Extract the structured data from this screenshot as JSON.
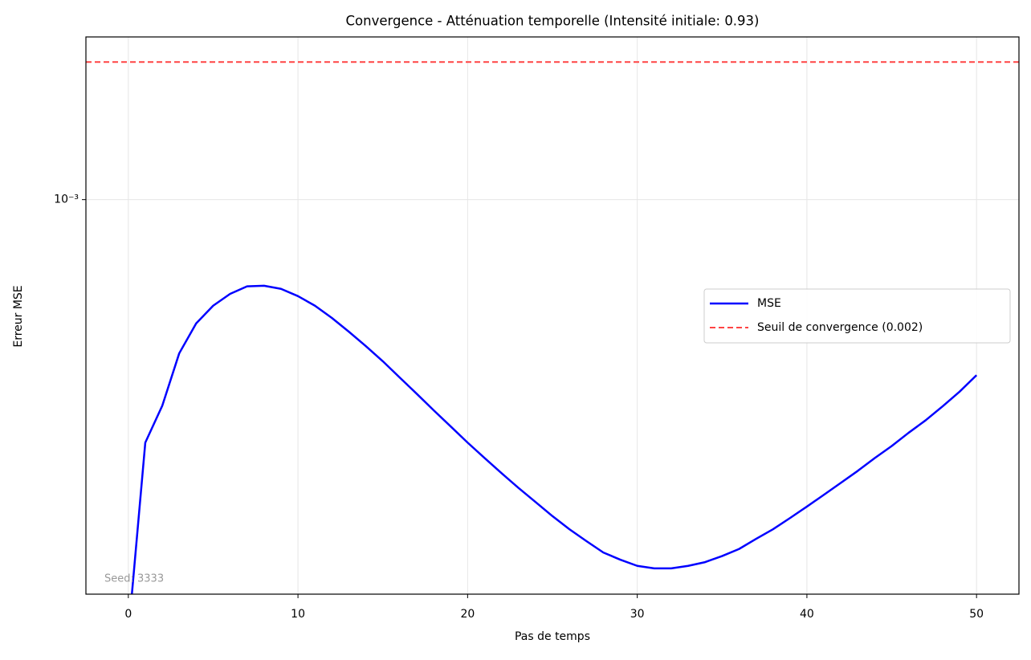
{
  "chart_data": {
    "type": "line",
    "title": "Convergence - Atténuation temporelle (Intensité initiale: 0.93)",
    "xlabel": "Pas de temps",
    "ylabel": "Erreur MSE",
    "x": [
      0,
      1,
      2,
      3,
      4,
      5,
      6,
      7,
      8,
      9,
      10,
      11,
      12,
      13,
      14,
      15,
      16,
      17,
      18,
      19,
      20,
      21,
      22,
      23,
      24,
      25,
      26,
      27,
      28,
      29,
      30,
      31,
      32,
      33,
      34,
      35,
      36,
      37,
      38,
      39,
      40,
      41,
      42,
      43,
      44,
      45,
      46,
      47,
      48,
      49,
      50
    ],
    "series": [
      {
        "name": "MSE",
        "color": "#0000ff",
        "values": [
          0,
          0.000294,
          0.000354,
          0.000461,
          0.000536,
          0.000586,
          0.000622,
          0.000646,
          0.000648,
          0.000638,
          0.000615,
          0.000586,
          0.000551,
          0.000514,
          0.000478,
          0.000443,
          0.000408,
          0.000376,
          0.000346,
          0.000319,
          0.000294,
          0.000272,
          0.000252,
          0.000234,
          0.000218,
          0.000203,
          0.00019,
          0.000179,
          0.000169,
          0.000163,
          0.000158,
          0.000156,
          0.000156,
          0.000158,
          0.000161,
          0.000166,
          0.000172,
          0.000181,
          0.00019,
          0.000201,
          0.000213,
          0.000226,
          0.00024,
          0.000255,
          0.000272,
          0.000289,
          0.000309,
          0.000329,
          0.000353,
          0.00038,
          0.000413
        ]
      }
    ],
    "threshold": {
      "name": "Seuil de convergence (0.002)",
      "value": 0.002,
      "color": "#ff4444"
    },
    "annotation": "Seed: 3333",
    "xlim": [
      -2.5,
      52.5
    ],
    "xticks": [
      0,
      10,
      20,
      30,
      40,
      50
    ],
    "ylim": [
      0.000137,
      0.00227
    ],
    "yticks": [
      {
        "value": 0.001,
        "label": "10⁻³"
      }
    ],
    "yscale": "log",
    "grid": true,
    "legend": "center right"
  }
}
